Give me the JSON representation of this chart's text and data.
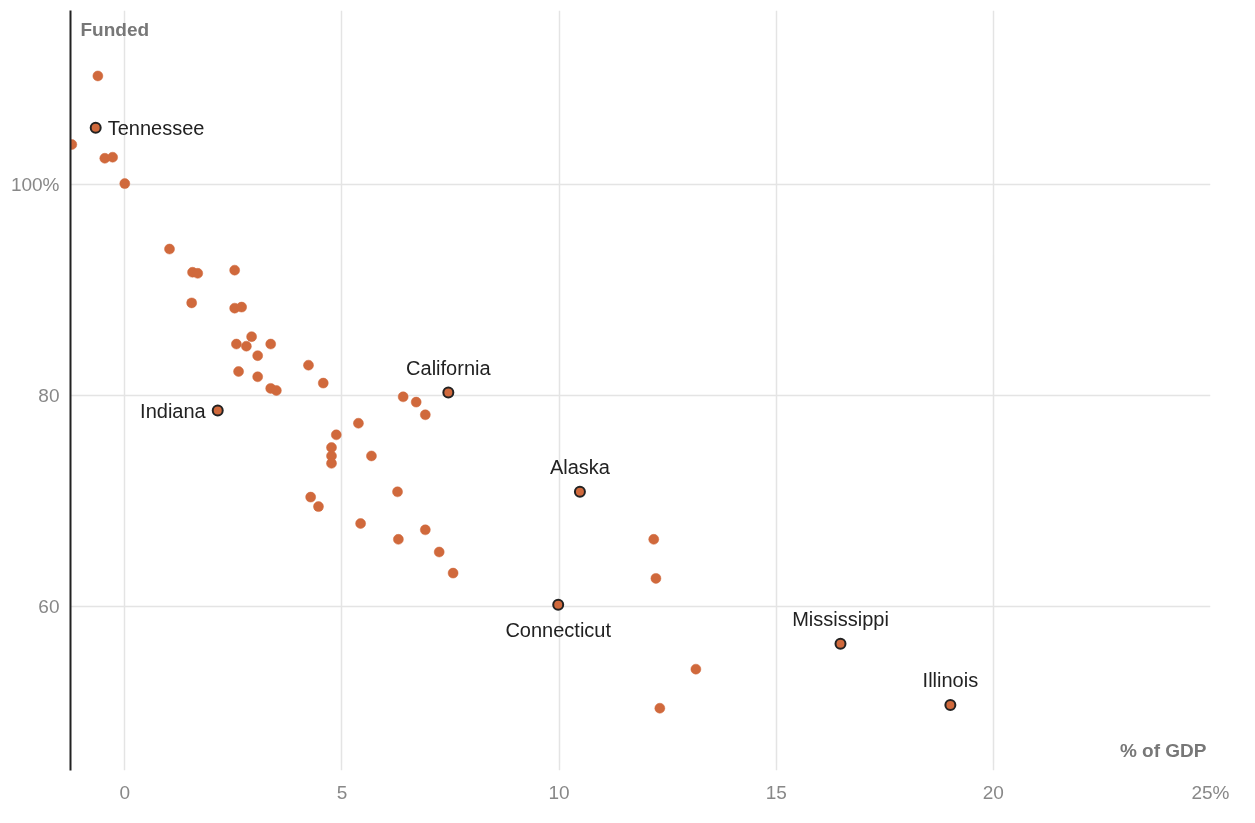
{
  "chart_data": {
    "type": "scatter",
    "xlabel": "% of GDP",
    "ylabel": "Funded",
    "xlim": [
      -1.25,
      25
    ],
    "ylim": [
      44.5,
      116.5
    ],
    "xticks": [
      0,
      5,
      10,
      15,
      20,
      {
        "value": 25,
        "label": "25%"
      }
    ],
    "yticks": [
      60,
      80,
      {
        "value": 100,
        "label": "100%"
      }
    ],
    "grid": true,
    "marker": "circle",
    "series": [
      {
        "color": "#d0693c",
        "x": [
          -0.62,
          -0.67,
          -1.22,
          -0.46,
          -0.28,
          0.0,
          1.03,
          1.56,
          1.68,
          1.54,
          2.53,
          2.53,
          2.69,
          2.57,
          2.92,
          2.8,
          3.36,
          3.06,
          2.62,
          3.06,
          3.36,
          3.49,
          4.23,
          4.57,
          7.45,
          6.41,
          6.71,
          6.92,
          2.14,
          5.38,
          4.87,
          4.76,
          4.76,
          4.76,
          5.68,
          10.48,
          6.28,
          4.28,
          4.46,
          5.43,
          6.92,
          6.3,
          7.24,
          7.56,
          12.18,
          12.23,
          9.98,
          16.48,
          13.15,
          19.01,
          12.32
        ],
        "values": [
          110.3,
          105.4,
          103.8,
          102.5,
          102.6,
          100.1,
          93.9,
          91.7,
          91.6,
          88.8,
          91.9,
          88.3,
          88.4,
          84.9,
          85.6,
          84.7,
          84.9,
          83.8,
          82.3,
          81.8,
          80.7,
          80.5,
          82.9,
          81.2,
          80.3,
          79.9,
          79.4,
          78.2,
          78.6,
          77.4,
          76.3,
          75.1,
          74.3,
          73.6,
          74.3,
          70.9,
          70.9,
          70.4,
          69.5,
          67.9,
          67.3,
          66.4,
          65.2,
          63.2,
          66.4,
          62.7,
          60.2,
          56.5,
          54.1,
          50.7,
          50.4
        ]
      }
    ],
    "annotations": [
      {
        "text": "Tennessee",
        "x": -0.67,
        "y": 105.4
      },
      {
        "text": "Indiana",
        "x": 2.14,
        "y": 78.6
      },
      {
        "text": "California",
        "x": 7.45,
        "y": 80.3
      },
      {
        "text": "Alaska",
        "x": 10.48,
        "y": 70.9
      },
      {
        "text": "Connecticut",
        "x": 9.98,
        "y": 60.2
      },
      {
        "text": "Mississippi",
        "x": 16.48,
        "y": 56.5
      },
      {
        "text": "Illinois",
        "x": 19.01,
        "y": 50.7
      }
    ]
  }
}
